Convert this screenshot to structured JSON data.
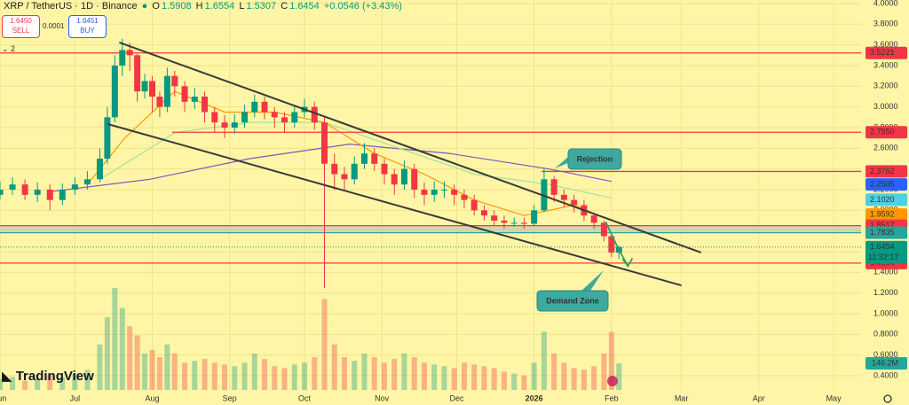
{
  "chart_data": {
    "type": "candlestick",
    "title": "XRP / TetherUS · 1D · Binance",
    "ohlc_letters": [
      "O",
      "H",
      "L",
      "C"
    ],
    "change": "+0.0546 (+3.43%)",
    "sell": {
      "price": "1.6450",
      "label": "SELL"
    },
    "buy": {
      "price": "1.6451",
      "label": "BUY"
    },
    "spread": "0.0001",
    "indicator_count": "2",
    "brand": "TradingView",
    "countdown": "11:32:17",
    "up_color": "#089981",
    "down_color": "#f23645",
    "xlim": [
      -30,
      315
    ],
    "ylim": [
      0.263,
      4.034
    ],
    "volume_ylim": [
      0,
      560
    ],
    "grid": true,
    "xticks": [
      {
        "value": -30,
        "label": "Jun"
      },
      {
        "value": 0,
        "label": "Jul"
      },
      {
        "value": 31,
        "label": "Aug"
      },
      {
        "value": 62,
        "label": "Sep"
      },
      {
        "value": 92,
        "label": "Oct"
      },
      {
        "value": 123,
        "label": "Nov"
      },
      {
        "value": 153,
        "label": "Dec"
      },
      {
        "value": 184,
        "label": "2026"
      },
      {
        "value": 215,
        "label": "Feb"
      },
      {
        "value": 243,
        "label": "Mar"
      },
      {
        "value": 274,
        "label": "Apr"
      },
      {
        "value": 304,
        "label": "May"
      }
    ],
    "yticks": [
      {
        "value": 0.4,
        "label": "0.4000"
      },
      {
        "value": 0.6,
        "label": "0.6000"
      },
      {
        "value": 0.8,
        "label": "0.8000"
      },
      {
        "value": 1.0,
        "label": "1.0000"
      },
      {
        "value": 1.2,
        "label": "1.2000"
      },
      {
        "value": 1.4,
        "label": "1.4000"
      },
      {
        "value": 1.6,
        "label": "1.6000"
      },
      {
        "value": 1.8,
        "label": "1.8000"
      },
      {
        "value": 2.0,
        "label": "2.0000"
      },
      {
        "value": 2.2,
        "label": "2.2000"
      },
      {
        "value": 2.4,
        "label": "2.4000"
      },
      {
        "value": 2.6,
        "label": "2.6000"
      },
      {
        "value": 2.8,
        "label": "2.8000"
      },
      {
        "value": 3.0,
        "label": "3.0000"
      },
      {
        "value": 3.2,
        "label": "3.2000"
      },
      {
        "value": 3.4,
        "label": "3.4000"
      },
      {
        "value": 3.6,
        "label": "3.6000"
      },
      {
        "value": 3.8,
        "label": "3.8000"
      },
      {
        "value": 4.0,
        "label": "4.0000"
      }
    ],
    "candles": {
      "x": [
        -30,
        -25,
        -20,
        -15,
        -10,
        -5,
        0,
        5,
        10,
        13,
        16,
        19,
        22,
        25,
        28,
        31,
        34,
        37,
        40,
        44,
        48,
        52,
        56,
        60,
        64,
        68,
        72,
        76,
        80,
        84,
        88,
        92,
        96,
        100,
        104,
        108,
        112,
        116,
        120,
        124,
        128,
        132,
        136,
        140,
        144,
        148,
        152,
        156,
        160,
        164,
        168,
        172,
        176,
        180,
        184,
        188,
        192,
        196,
        200,
        204,
        208,
        212,
        215,
        218
      ],
      "open": [
        2.15,
        2.2,
        2.25,
        2.15,
        2.2,
        2.1,
        2.2,
        2.25,
        2.3,
        2.5,
        2.9,
        3.4,
        3.55,
        3.5,
        3.15,
        3.25,
        3.1,
        3.0,
        3.3,
        3.2,
        3.05,
        3.1,
        2.95,
        2.85,
        2.8,
        2.85,
        2.95,
        3.05,
        2.95,
        2.9,
        2.85,
        2.95,
        3.0,
        2.85,
        2.45,
        2.35,
        2.3,
        2.45,
        2.55,
        2.45,
        2.35,
        2.25,
        2.4,
        2.2,
        2.15,
        2.2,
        2.2,
        2.15,
        2.1,
        2.0,
        1.95,
        1.9,
        1.88,
        1.88,
        1.87,
        2.0,
        2.3,
        2.15,
        2.1,
        2.05,
        1.95,
        1.88,
        1.75,
        1.5908
      ],
      "high": [
        2.28,
        2.32,
        2.3,
        2.27,
        2.25,
        2.26,
        2.32,
        2.38,
        2.6,
        3.0,
        3.5,
        3.66,
        3.62,
        3.52,
        3.32,
        3.3,
        3.15,
        3.38,
        3.35,
        3.25,
        3.18,
        3.15,
        3.0,
        2.92,
        2.93,
        3.02,
        3.12,
        3.1,
        3.0,
        2.95,
        3.02,
        3.08,
        3.05,
        2.9,
        2.55,
        2.42,
        2.52,
        2.65,
        2.6,
        2.5,
        2.4,
        2.48,
        2.45,
        2.27,
        2.28,
        2.28,
        2.25,
        2.2,
        2.15,
        2.05,
        2.0,
        1.95,
        1.93,
        1.93,
        2.05,
        2.4,
        2.33,
        2.2,
        2.15,
        2.1,
        1.98,
        1.9,
        1.78,
        1.6554
      ],
      "low": [
        2.1,
        2.15,
        2.1,
        2.08,
        2.0,
        2.05,
        2.15,
        2.2,
        2.27,
        2.45,
        2.85,
        3.3,
        3.35,
        3.05,
        3.08,
        2.95,
        2.9,
        2.95,
        3.1,
        2.95,
        2.98,
        2.85,
        2.75,
        2.7,
        2.74,
        2.8,
        2.9,
        2.88,
        2.8,
        2.75,
        2.8,
        2.9,
        2.78,
        1.25,
        2.2,
        2.2,
        2.25,
        2.4,
        2.38,
        2.25,
        2.15,
        2.2,
        2.12,
        2.05,
        2.08,
        2.12,
        2.05,
        2.02,
        1.95,
        1.9,
        1.85,
        1.82,
        1.84,
        1.82,
        1.85,
        1.98,
        2.08,
        2.03,
        1.98,
        1.9,
        1.82,
        1.7,
        1.55,
        1.5307
      ],
      "close": [
        2.2,
        2.25,
        2.15,
        2.2,
        2.1,
        2.2,
        2.25,
        2.3,
        2.5,
        2.9,
        3.4,
        3.55,
        3.5,
        3.15,
        3.25,
        3.1,
        3.0,
        3.3,
        3.2,
        3.05,
        3.1,
        2.95,
        2.85,
        2.8,
        2.85,
        2.95,
        3.05,
        2.95,
        2.9,
        2.85,
        2.95,
        3.0,
        2.85,
        2.45,
        2.35,
        2.3,
        2.45,
        2.55,
        2.45,
        2.35,
        2.25,
        2.4,
        2.2,
        2.15,
        2.2,
        2.2,
        2.15,
        2.1,
        2.0,
        1.95,
        1.9,
        1.88,
        1.88,
        1.87,
        2.0,
        2.3,
        2.15,
        2.1,
        2.05,
        1.95,
        1.88,
        1.75,
        1.5908,
        1.6454
      ],
      "volume": [
        60,
        70,
        50,
        60,
        80,
        70,
        90,
        110,
        250,
        400,
        560,
        450,
        350,
        300,
        200,
        220,
        180,
        250,
        200,
        150,
        160,
        170,
        150,
        140,
        130,
        150,
        200,
        170,
        130,
        120,
        140,
        150,
        180,
        500,
        250,
        180,
        160,
        200,
        180,
        150,
        170,
        200,
        180,
        150,
        140,
        130,
        120,
        150,
        140,
        130,
        120,
        100,
        90,
        80,
        150,
        320,
        200,
        150,
        120,
        110,
        130,
        200,
        320,
        146.2
      ],
      "volume_label": "146.2M"
    },
    "moving_averages": [
      {
        "color": "#7e57c2",
        "x": [
          -10,
          30,
          70,
          110,
          150,
          190,
          215
        ],
        "values": [
          2.18,
          2.3,
          2.5,
          2.64,
          2.55,
          2.4,
          2.28
        ]
      },
      {
        "color": "#a5e0a0",
        "x": [
          10,
          40,
          70,
          100,
          130,
          160,
          190,
          215
        ],
        "values": [
          2.3,
          2.75,
          2.85,
          2.85,
          2.6,
          2.35,
          2.25,
          2.12
        ]
      },
      {
        "color": "#ff9800",
        "x": [
          5,
          20,
          40,
          60,
          80,
          100,
          120,
          140,
          160,
          180,
          200,
          215
        ],
        "values": [
          2.25,
          2.7,
          3.15,
          2.95,
          2.95,
          2.85,
          2.55,
          2.35,
          2.1,
          1.95,
          2.05,
          1.9
        ]
      }
    ],
    "levels": [
      {
        "value": 3.5221,
        "color": "#f23645",
        "line": true,
        "start": -30
      },
      {
        "value": 2.755,
        "label": "2.7550",
        "color": "#f23645",
        "line": true,
        "start": 39
      },
      {
        "value": 2.3762,
        "color": "#f23645",
        "line": true,
        "start": 187
      },
      {
        "value": 2.2505,
        "color": "#2962ff",
        "line": false
      },
      {
        "value": 2.102,
        "label": "2.1020",
        "color": "#4dd0e1",
        "line": false
      },
      {
        "value": 1.9592,
        "color": "#ff9800",
        "line": false
      },
      {
        "value": 1.8517,
        "color": "#f23645",
        "line": true,
        "start": -30
      },
      {
        "value": 1.7835,
        "color": "#26a69a",
        "line": true,
        "start": -30
      },
      {
        "value": 1.4894,
        "color": "#f23645",
        "line": true,
        "start": -30
      }
    ],
    "zone": [
      1.7835,
      1.8517
    ],
    "trendlines": [
      {
        "x": [
          17.8,
          250.9
        ],
        "values": [
          3.623,
          1.592
        ]
      },
      {
        "x": [
          13.2,
          243
        ],
        "values": [
          2.834,
          1.274
        ]
      }
    ],
    "arrow": {
      "x": [
        212.7,
        216,
        221.6
      ],
      "values": [
        1.89,
        1.7,
        1.46
      ]
    },
    "annotations": [
      "Rejection",
      "Demand Zone"
    ]
  }
}
